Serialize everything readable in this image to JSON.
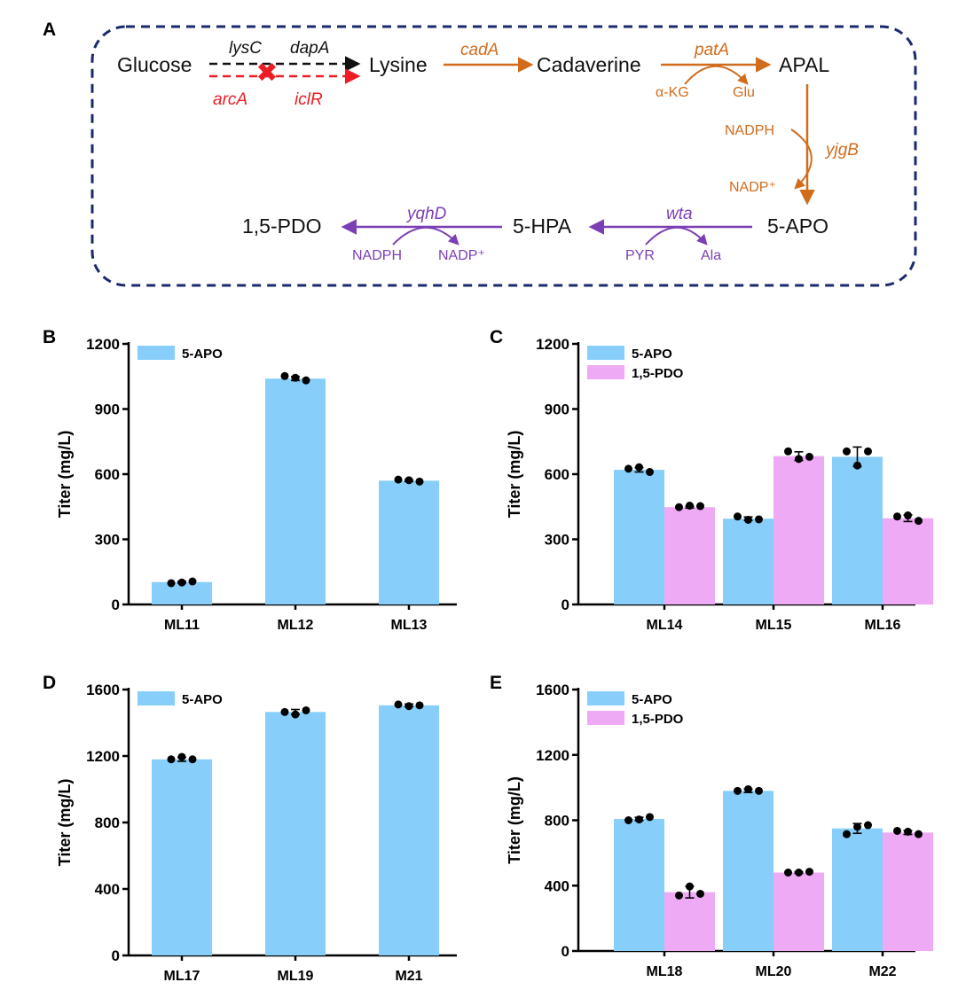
{
  "colors": {
    "apo": "#87cefa",
    "pdo": "#eeaaf5",
    "black": "#111111",
    "red": "#ee1c25",
    "orange": "#d16c1d",
    "purple": "#7b3fb5",
    "navy": "#1a2a6c"
  },
  "pathway": {
    "letter": "A",
    "nodes": {
      "glucose": "Glucose",
      "lysine": "Lysine",
      "cadaverine": "Cadaverine",
      "apal": "APAL",
      "apo": "5-APO",
      "hpa": "5-HPA",
      "pdo": "1,5-PDO"
    },
    "genes": {
      "lysC": "lysC",
      "dapA": "dapA",
      "arcA": "arcA",
      "iclR": "iclR",
      "cadA": "cadA",
      "patA": "patA",
      "yjgB": "yjgB",
      "wta": "wta",
      "yqhD": "yqhD"
    },
    "cofactors": {
      "akg": "α-KG",
      "glu": "Glu",
      "nadph1": "NADPH",
      "nadp1": "NADP⁺",
      "pyr": "PYR",
      "ala": "Ala",
      "nadph2": "NADPH",
      "nadp2": "NADP⁺"
    },
    "knockout_mark": "✖"
  },
  "chart_data": [
    {
      "panel": "B",
      "type": "bar",
      "ylabel": "Titer (mg/L)",
      "ylim": [
        0,
        1200
      ],
      "yticks": [
        0,
        300,
        600,
        900,
        1200
      ],
      "categories": [
        "ML11",
        "ML12",
        "ML13"
      ],
      "legend_position": "top-left",
      "series": [
        {
          "name": "5-APO",
          "color": "#87cefa",
          "values": [
            103,
            1040,
            570
          ],
          "points": [
            [
              98,
              101,
              106
            ],
            [
              1052,
              1044,
              1032
            ],
            [
              575,
              572,
              566
            ]
          ],
          "err": [
            4,
            9,
            4
          ]
        }
      ]
    },
    {
      "panel": "C",
      "type": "bar",
      "ylabel": "Titer (mg/L)",
      "ylim": [
        0,
        1200
      ],
      "yticks": [
        0,
        300,
        600,
        900,
        1200
      ],
      "categories": [
        "ML14",
        "ML15",
        "ML16"
      ],
      "legend_position": "top-left",
      "series": [
        {
          "name": "5-APO",
          "color": "#87cefa",
          "values": [
            620,
            395,
            680
          ],
          "points": [
            [
              625,
              632,
              610
            ],
            [
              405,
              390,
              392
            ],
            [
              705,
              640,
              705
            ]
          ],
          "err": [
            10,
            8,
            45
          ]
        },
        {
          "name": "1,5-PDO",
          "color": "#eeaaf5",
          "values": [
            448,
            683,
            397
          ],
          "points": [
            [
              448,
              455,
              453
            ],
            [
              705,
              670,
              680
            ],
            [
              405,
              410,
              385
            ]
          ],
          "err": [
            4,
            20,
            15
          ]
        }
      ]
    },
    {
      "panel": "D",
      "type": "bar",
      "ylabel": "Titer (mg/L)",
      "ylim": [
        0,
        1600
      ],
      "yticks": [
        0,
        400,
        800,
        1200,
        1600
      ],
      "categories": [
        "ML17",
        "ML19",
        "M21"
      ],
      "legend_position": "top-left",
      "series": [
        {
          "name": "5-APO",
          "color": "#87cefa",
          "values": [
            1180,
            1465,
            1505
          ],
          "points": [
            [
              1180,
              1195,
              1180
            ],
            [
              1465,
              1450,
              1475
            ],
            [
              1510,
              1500,
              1505
            ]
          ],
          "err": [
            12,
            15,
            8
          ]
        }
      ]
    },
    {
      "panel": "E",
      "type": "bar",
      "ylabel": "Titer (mg/L)",
      "ylim": [
        0,
        1600
      ],
      "yticks": [
        0,
        400,
        800,
        1200,
        1600
      ],
      "categories": [
        "ML18",
        "ML20",
        "M22"
      ],
      "legend_position": "top-left",
      "series": [
        {
          "name": "5-APO",
          "color": "#87cefa",
          "values": [
            808,
            980,
            750
          ],
          "points": [
            [
              800,
              805,
              820
            ],
            [
              980,
              990,
              980
            ],
            [
              715,
              760,
              770
            ]
          ],
          "err": [
            10,
            10,
            30
          ]
        },
        {
          "name": "1,5-PDO",
          "color": "#eeaaf5",
          "values": [
            360,
            480,
            725
          ],
          "points": [
            [
              340,
              395,
              350
            ],
            [
              480,
              480,
              485
            ],
            [
              735,
              730,
              715
            ]
          ],
          "err": [
            35,
            5,
            12
          ]
        }
      ]
    }
  ]
}
